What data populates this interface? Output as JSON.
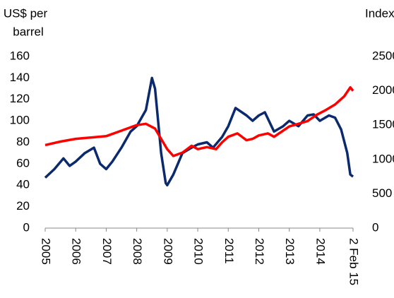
{
  "chart_data": {
    "type": "line",
    "ylabel": [
      "US$ per",
      "barrel"
    ],
    "y2label": "Index",
    "ylim": [
      0,
      160
    ],
    "yticks": [
      0,
      20,
      40,
      60,
      80,
      100,
      120,
      140,
      160
    ],
    "y2lim": [
      0,
      2500
    ],
    "y2ticks": [
      0,
      500,
      1000,
      1500,
      2000,
      2500
    ],
    "xlim": [
      2005,
      2015.09
    ],
    "xticks": [
      2005,
      2006,
      2007,
      2008,
      2009,
      2010,
      2011,
      2012,
      2013,
      2014,
      {
        "value": 2015.09,
        "label": "2 Feb 15"
      }
    ],
    "series": [
      {
        "color": "#0b2a6e",
        "x": [
          2005.0,
          2005.3,
          2005.6,
          2005.8,
          2006.0,
          2006.3,
          2006.6,
          2006.8,
          2007.0,
          2007.2,
          2007.5,
          2007.8,
          2008.0,
          2008.3,
          2008.5,
          2008.6,
          2008.8,
          2008.95,
          2009.0,
          2009.2,
          2009.5,
          2009.8,
          2010.0,
          2010.3,
          2010.5,
          2010.8,
          2011.0,
          2011.24,
          2011.6,
          2011.8,
          2012.0,
          2012.2,
          2012.5,
          2012.8,
          2013.0,
          2013.3,
          2013.6,
          2013.8,
          2014.0,
          2014.3,
          2014.5,
          2014.7,
          2014.9,
          2015.0,
          2015.09
        ],
        "values": [
          47,
          55,
          65,
          58,
          62,
          70,
          75,
          60,
          55,
          62,
          75,
          90,
          95,
          110,
          140,
          130,
          70,
          42,
          40,
          50,
          70,
          75,
          78,
          80,
          75,
          85,
          95,
          112,
          105,
          100,
          105,
          108,
          90,
          95,
          100,
          95,
          105,
          106,
          100,
          105,
          103,
          92,
          70,
          50,
          48
        ]
      },
      {
        "color": "#ff0000",
        "axis": "y2",
        "x": [
          2005.0,
          2005.5,
          2006.0,
          2006.5,
          2007.0,
          2007.5,
          2008.0,
          2008.3,
          2008.6,
          2008.8,
          2009.0,
          2009.2,
          2009.5,
          2009.8,
          2010.0,
          2010.3,
          2010.6,
          2010.8,
          2011.0,
          2011.3,
          2011.6,
          2011.8,
          2012.0,
          2012.3,
          2012.5,
          2012.8,
          2013.0,
          2013.3,
          2013.6,
          2013.9,
          2014.2,
          2014.5,
          2014.8,
          2015.0,
          2015.09
        ],
        "values": [
          1210,
          1260,
          1300,
          1320,
          1340,
          1420,
          1500,
          1520,
          1450,
          1300,
          1150,
          1050,
          1100,
          1200,
          1150,
          1180,
          1150,
          1250,
          1330,
          1380,
          1280,
          1300,
          1350,
          1380,
          1330,
          1420,
          1480,
          1520,
          1560,
          1650,
          1720,
          1800,
          1920,
          2050,
          2000
        ]
      }
    ]
  }
}
